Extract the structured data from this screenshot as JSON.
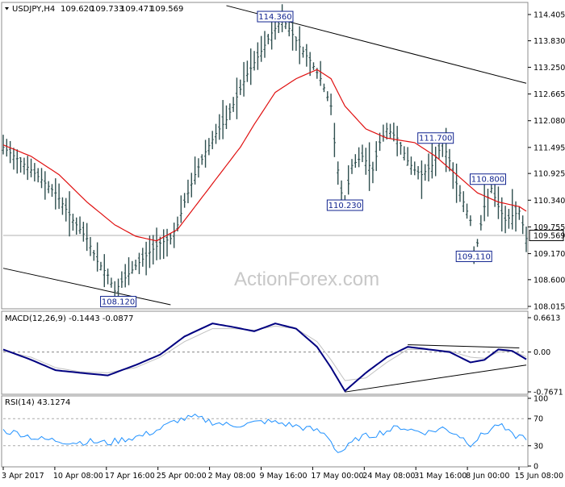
{
  "chart_data": [
    {
      "type": "bar",
      "title": "USDJPY,H4",
      "header_values": [
        "109.620",
        "109.733",
        "109.471",
        "109.569"
      ],
      "watermark": "ActionForex.com",
      "y_ticks": [
        "114.405",
        "113.830",
        "113.250",
        "112.665",
        "112.080",
        "111.495",
        "110.925",
        "110.340",
        "109.755",
        "109.170",
        "108.600",
        "108.015"
      ],
      "ylim": [
        108.015,
        114.405
      ],
      "last_price": "109.569",
      "x_ticks": [
        "3 Apr 2017",
        "10 Apr 08:00",
        "17 Apr 16:00",
        "25 Apr 00:00",
        "2 May 08:00",
        "9 May 16:00",
        "17 May 00:00",
        "24 May 08:00",
        "31 May 16:00",
        "8 Jun 00:00",
        "15 Jun 08:00"
      ],
      "price_path": [
        [
          0,
          111.5
        ],
        [
          8,
          111.0
        ],
        [
          15,
          110.5
        ],
        [
          20,
          109.9
        ],
        [
          24,
          109.5
        ],
        [
          27,
          109.0
        ],
        [
          30,
          108.7
        ],
        [
          32,
          108.35
        ],
        [
          34,
          108.55
        ],
        [
          38,
          108.9
        ],
        [
          42,
          109.2
        ],
        [
          45,
          109.4
        ],
        [
          48,
          109.5
        ],
        [
          50,
          109.8
        ],
        [
          52,
          110.3
        ],
        [
          55,
          110.9
        ],
        [
          58,
          111.4
        ],
        [
          61,
          111.8
        ],
        [
          64,
          112.1
        ],
        [
          67,
          112.6
        ],
        [
          70,
          113.1
        ],
        [
          74,
          113.6
        ],
        [
          77,
          114.0
        ],
        [
          80,
          114.3
        ],
        [
          82,
          114.1
        ],
        [
          85,
          113.7
        ],
        [
          88,
          113.4
        ],
        [
          91,
          113.0
        ],
        [
          94,
          112.4
        ],
        [
          95,
          111.6
        ],
        [
          96,
          111.0
        ],
        [
          97,
          110.5
        ],
        [
          98,
          110.3
        ],
        [
          100,
          111.1
        ],
        [
          103,
          111.3
        ],
        [
          106,
          111.0
        ],
        [
          108,
          111.6
        ],
        [
          110,
          111.9
        ],
        [
          113,
          111.7
        ],
        [
          116,
          111.2
        ],
        [
          118,
          111.0
        ],
        [
          120,
          110.9
        ],
        [
          123,
          111.1
        ],
        [
          126,
          111.6
        ],
        [
          128,
          111.2
        ],
        [
          130,
          110.7
        ],
        [
          132,
          110.3
        ],
        [
          134,
          109.9
        ],
        [
          135,
          109.2
        ],
        [
          136,
          109.4
        ],
        [
          138,
          110.2
        ],
        [
          140,
          110.6
        ],
        [
          142,
          110.2
        ],
        [
          144,
          109.9
        ],
        [
          146,
          110.0
        ],
        [
          148,
          110.1
        ],
        [
          150,
          109.5
        ]
      ],
      "ma_path": [
        [
          0,
          111.55
        ],
        [
          8,
          111.3
        ],
        [
          16,
          110.9
        ],
        [
          24,
          110.3
        ],
        [
          32,
          109.8
        ],
        [
          38,
          109.55
        ],
        [
          44,
          109.45
        ],
        [
          50,
          109.7
        ],
        [
          56,
          110.3
        ],
        [
          62,
          110.9
        ],
        [
          68,
          111.5
        ],
        [
          72,
          112.0
        ],
        [
          78,
          112.7
        ],
        [
          84,
          113.0
        ],
        [
          90,
          113.2
        ],
        [
          94,
          113.0
        ],
        [
          98,
          112.4
        ],
        [
          104,
          111.9
        ],
        [
          110,
          111.7
        ],
        [
          118,
          111.6
        ],
        [
          124,
          111.3
        ],
        [
          130,
          110.9
        ],
        [
          136,
          110.5
        ],
        [
          142,
          110.3
        ],
        [
          148,
          110.2
        ],
        [
          150,
          110.1
        ]
      ],
      "annotations": [
        {
          "label": "114.360",
          "x": 78,
          "y": 114.36
        },
        {
          "label": "108.120",
          "x": 33,
          "y": 108.12
        },
        {
          "label": "110.230",
          "x": 98,
          "y": 110.23
        },
        {
          "label": "111.700",
          "x": 124,
          "y": 111.7
        },
        {
          "label": "110.800",
          "x": 139,
          "y": 110.8
        },
        {
          "label": "109.110",
          "x": 135,
          "y": 109.11
        }
      ],
      "trendlines": [
        {
          "from": [
            0,
            108.85
          ],
          "to": [
            48,
            108.05
          ],
          "color": "#000000"
        },
        {
          "from": [
            64,
            114.6
          ],
          "to": [
            150,
            112.9
          ],
          "color": "#000000"
        }
      ],
      "ref_line": {
        "value": 109.569,
        "color": "#b0b0b0"
      },
      "colors": {
        "price": "#2f4f4f",
        "ma": "#e01010",
        "label_border": "#10238f",
        "label_text": "#10238f"
      }
    },
    {
      "type": "line",
      "title": "MACD(12,26,9) -0.1443 -0.0877",
      "y_ticks": [
        "0.6613",
        "0.00",
        "-0.7671"
      ],
      "ylim": [
        -0.7671,
        0.6613
      ],
      "series": [
        {
          "name": "MACD",
          "color": "#000080",
          "points": [
            [
              0,
              0.05
            ],
            [
              8,
              -0.15
            ],
            [
              15,
              -0.35
            ],
            [
              22,
              -0.4
            ],
            [
              30,
              -0.45
            ],
            [
              38,
              -0.25
            ],
            [
              45,
              -0.05
            ],
            [
              52,
              0.3
            ],
            [
              60,
              0.55
            ],
            [
              66,
              0.48
            ],
            [
              72,
              0.4
            ],
            [
              78,
              0.55
            ],
            [
              84,
              0.45
            ],
            [
              90,
              0.1
            ],
            [
              94,
              -0.3
            ],
            [
              98,
              -0.75
            ],
            [
              104,
              -0.4
            ],
            [
              110,
              -0.1
            ],
            [
              116,
              0.1
            ],
            [
              122,
              0.05
            ],
            [
              128,
              0.0
            ],
            [
              134,
              -0.2
            ],
            [
              138,
              -0.15
            ],
            [
              142,
              0.05
            ],
            [
              146,
              0.02
            ],
            [
              150,
              -0.14
            ]
          ]
        },
        {
          "name": "Signal",
          "color": "#c0c0c0",
          "points": [
            [
              0,
              0.02
            ],
            [
              8,
              -0.1
            ],
            [
              15,
              -0.3
            ],
            [
              22,
              -0.38
            ],
            [
              30,
              -0.4
            ],
            [
              38,
              -0.3
            ],
            [
              45,
              -0.1
            ],
            [
              52,
              0.2
            ],
            [
              60,
              0.45
            ],
            [
              66,
              0.45
            ],
            [
              72,
              0.42
            ],
            [
              78,
              0.5
            ],
            [
              84,
              0.45
            ],
            [
              90,
              0.2
            ],
            [
              94,
              -0.15
            ],
            [
              98,
              -0.55
            ],
            [
              104,
              -0.5
            ],
            [
              110,
              -0.2
            ],
            [
              116,
              0.05
            ],
            [
              122,
              0.05
            ],
            [
              128,
              0.02
            ],
            [
              134,
              -0.1
            ],
            [
              138,
              -0.12
            ],
            [
              142,
              0.0
            ],
            [
              146,
              0.02
            ],
            [
              150,
              -0.09
            ]
          ]
        }
      ],
      "trendlines": [
        {
          "from": [
            116,
            0.14
          ],
          "to": [
            148,
            0.08
          ],
          "color": "#000000"
        },
        {
          "from": [
            98,
            -0.77
          ],
          "to": [
            150,
            -0.25
          ],
          "color": "#000000"
        }
      ]
    },
    {
      "type": "line",
      "title": "RSI(14) 43.1274",
      "y_ticks": [
        "100",
        "70",
        "30",
        "0"
      ],
      "ylim": [
        0,
        100
      ],
      "levels": [
        70,
        30
      ],
      "series": [
        {
          "name": "RSI",
          "color": "#1e90ff",
          "points": [
            [
              0,
              52
            ],
            [
              5,
              48
            ],
            [
              10,
              40
            ],
            [
              15,
              38
            ],
            [
              20,
              35
            ],
            [
              25,
              36
            ],
            [
              30,
              34
            ],
            [
              35,
              40
            ],
            [
              40,
              45
            ],
            [
              45,
              55
            ],
            [
              50,
              68
            ],
            [
              55,
              72
            ],
            [
              60,
              65
            ],
            [
              65,
              60
            ],
            [
              70,
              62
            ],
            [
              75,
              66
            ],
            [
              80,
              63
            ],
            [
              85,
              58
            ],
            [
              90,
              52
            ],
            [
              93,
              45
            ],
            [
              96,
              20
            ],
            [
              98,
              25
            ],
            [
              102,
              42
            ],
            [
              106,
              46
            ],
            [
              110,
              52
            ],
            [
              114,
              58
            ],
            [
              118,
              52
            ],
            [
              122,
              50
            ],
            [
              126,
              56
            ],
            [
              130,
              48
            ],
            [
              134,
              33
            ],
            [
              138,
              48
            ],
            [
              142,
              62
            ],
            [
              146,
              45
            ],
            [
              150,
              43
            ]
          ]
        }
      ]
    }
  ]
}
